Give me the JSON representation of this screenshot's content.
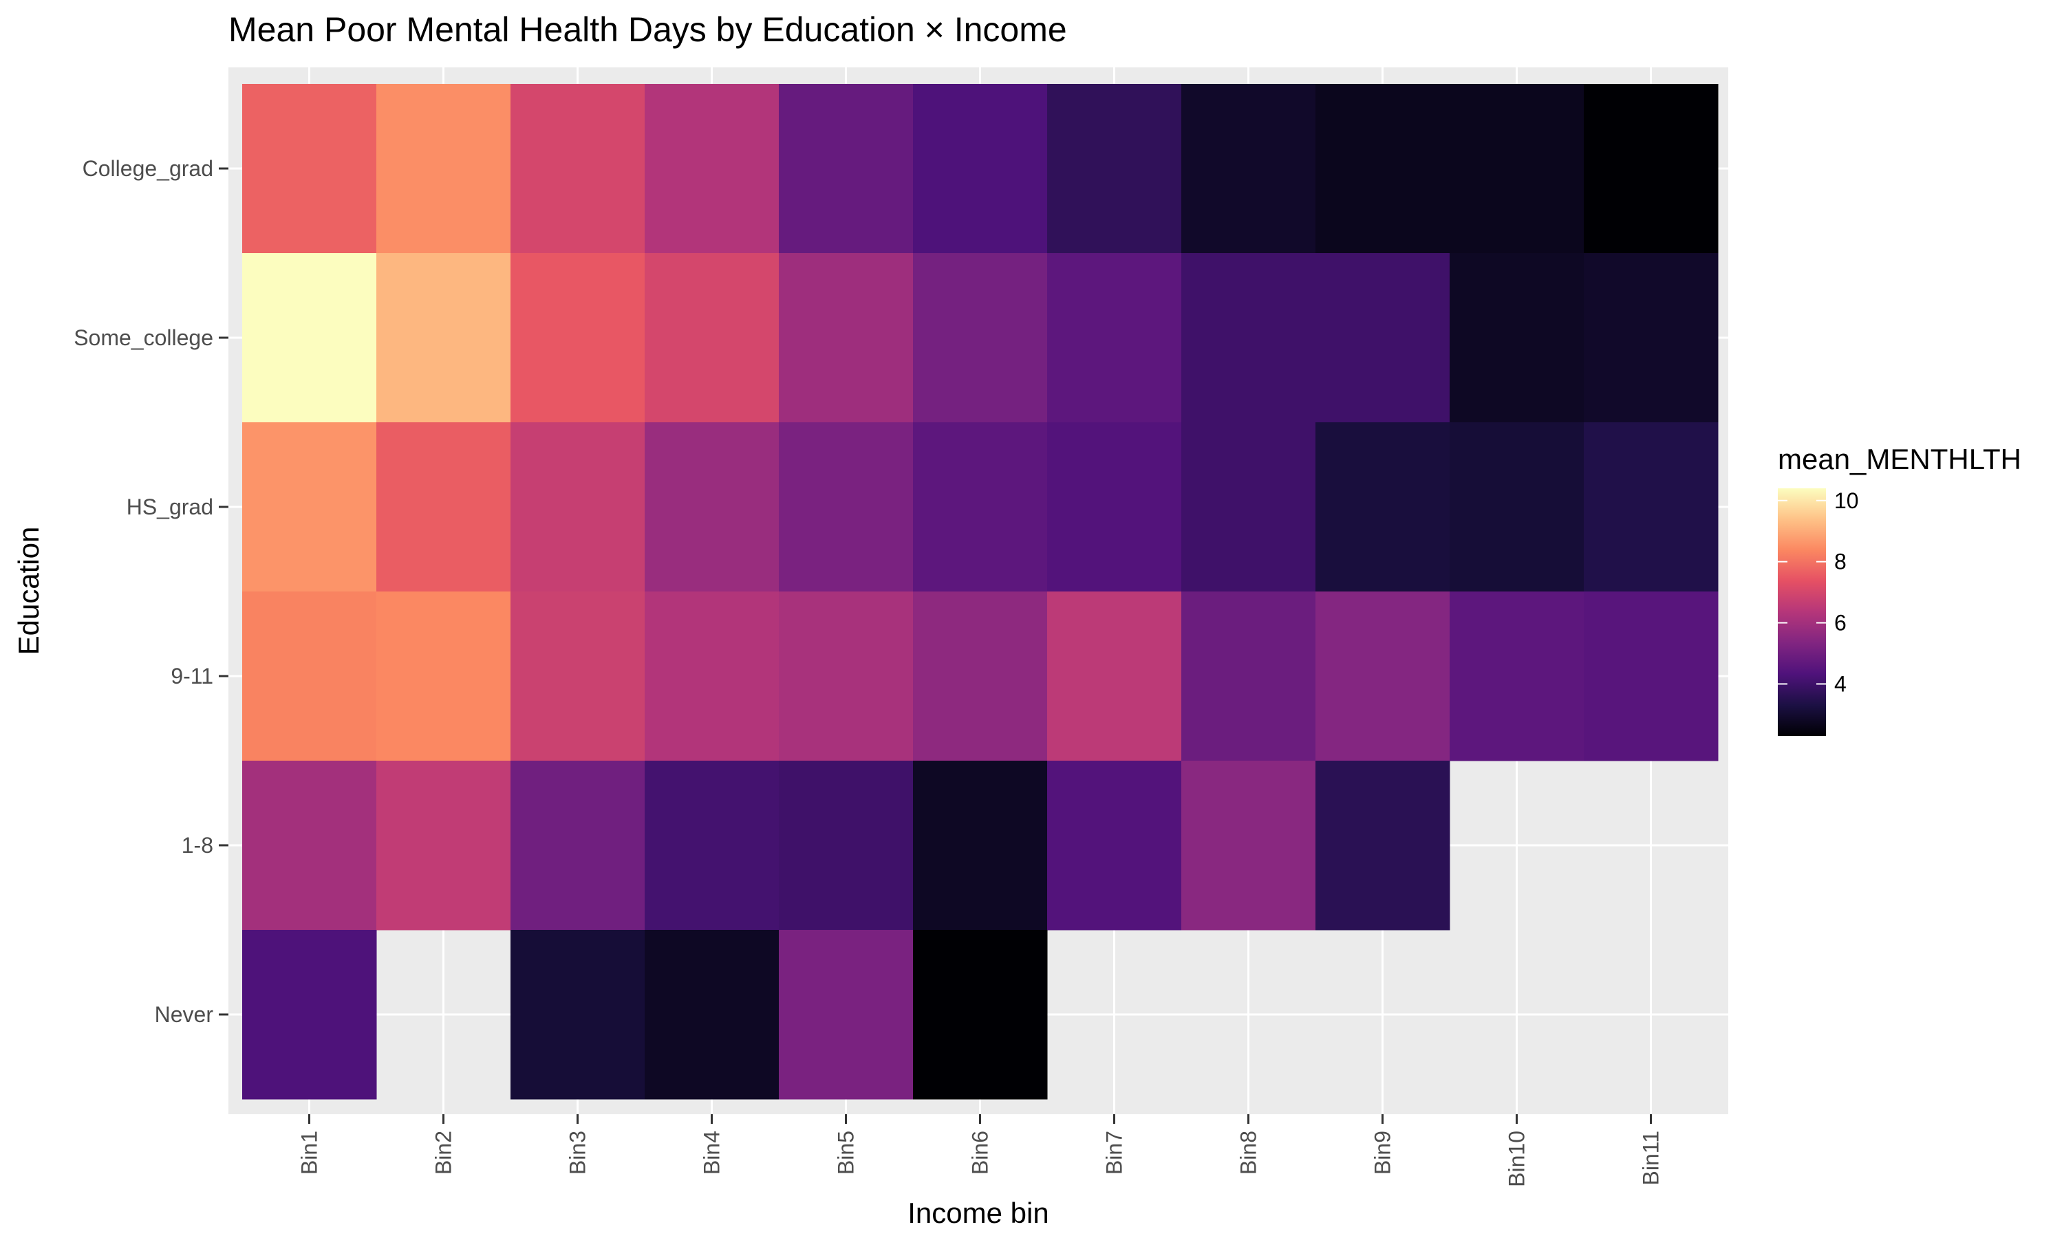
{
  "chart_data": {
    "type": "heatmap",
    "title": "Mean Poor Mental Health Days by Education × Income",
    "xlabel": "Income bin",
    "ylabel": "Education",
    "x_categories": [
      "Bin1",
      "Bin2",
      "Bin3",
      "Bin4",
      "Bin5",
      "Bin6",
      "Bin7",
      "Bin8",
      "Bin9",
      "Bin10",
      "Bin11"
    ],
    "y_categories": [
      "College_grad",
      "Some_college",
      "HS_grad",
      "9-11",
      "1-8",
      "Never"
    ],
    "values": [
      [
        7.7,
        8.5,
        7.0,
        6.3,
        4.8,
        4.3,
        3.7,
        2.9,
        2.7,
        2.7,
        2.3
      ],
      [
        10.4,
        9.2,
        7.5,
        7.0,
        5.9,
        5.1,
        4.6,
        4.0,
        4.0,
        2.8,
        2.9
      ],
      [
        8.6,
        7.6,
        6.7,
        5.8,
        5.2,
        4.6,
        4.4,
        4.0,
        3.2,
        3.1,
        3.4
      ],
      [
        8.3,
        8.4,
        6.8,
        6.3,
        6.1,
        5.6,
        6.5,
        4.9,
        5.4,
        4.6,
        4.5
      ],
      [
        6.0,
        6.6,
        5.0,
        4.1,
        4.0,
        2.8,
        4.4,
        5.5,
        3.6,
        null,
        null
      ],
      [
        4.3,
        null,
        3.1,
        2.8,
        5.2,
        2.3,
        null,
        null,
        null,
        null,
        null
      ]
    ],
    "color_scale": {
      "name": "magma",
      "min": 2.3,
      "max": 10.4,
      "stops": [
        "#000004",
        "#1c1044",
        "#4f127b",
        "#812581",
        "#b5367a",
        "#e55064",
        "#fb8761",
        "#fec287",
        "#fcfdbf"
      ]
    },
    "legend": {
      "title": "mean_MENTHLTH",
      "ticks": [
        4,
        6,
        8,
        10
      ],
      "position": "right"
    },
    "panel_background": "#ebebeb",
    "grid": true
  }
}
